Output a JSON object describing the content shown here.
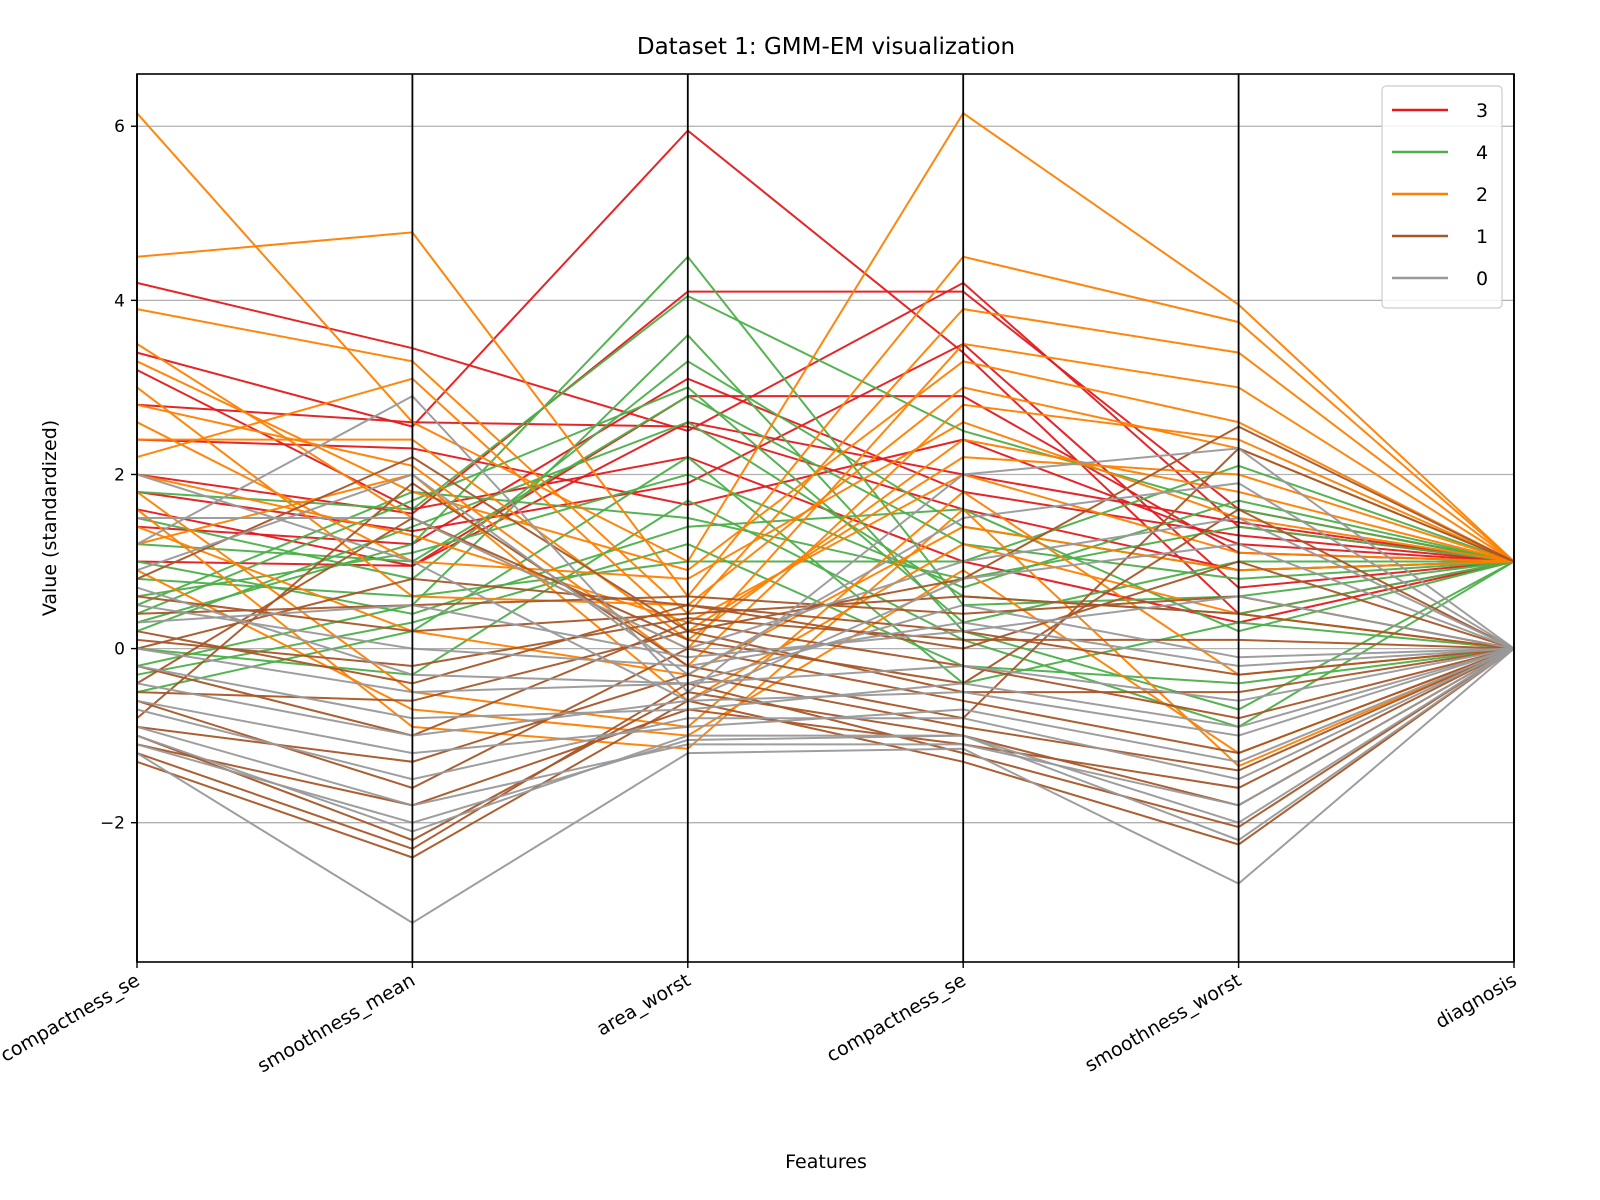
{
  "chart_data": {
    "type": "parallel-coordinates",
    "title": "Dataset 1: GMM-EM visualization",
    "xlabel": "Features",
    "ylabel": "Value (standardized)",
    "axes": [
      "compactness_se",
      "smoothness_mean",
      "area_worst",
      "compactness_se",
      "smoothness_worst",
      "diagnosis"
    ],
    "ylim": [
      -3.6,
      6.6
    ],
    "yticks": [
      -2,
      0,
      2,
      4,
      6
    ],
    "ytick_labels": [
      "−2",
      "0",
      "2",
      "4",
      "6"
    ],
    "grid": true,
    "legend_position": "top-right",
    "series": [
      {
        "name": "3",
        "color": "#e41a1c",
        "lines": [
          [
            4.2,
            3.45,
            2.5,
            4.2,
            1.4,
            1
          ],
          [
            3.4,
            2.55,
            5.95,
            3.4,
            0.4,
            1
          ],
          [
            2.4,
            2.3,
            1.65,
            2.4,
            1.2,
            1
          ],
          [
            2.0,
            1.55,
            4.1,
            4.1,
            1.6,
            1
          ],
          [
            1.6,
            0.95,
            2.9,
            2.9,
            1.1,
            1
          ],
          [
            1.0,
            0.95,
            2.6,
            2.0,
            1.45,
            1
          ],
          [
            3.2,
            1.6,
            2.2,
            1.0,
            0.3,
            1
          ],
          [
            1.8,
            1.35,
            1.9,
            3.5,
            0.7,
            1
          ],
          [
            2.8,
            2.6,
            2.55,
            1.6,
            0.9,
            1
          ],
          [
            1.4,
            1.2,
            3.1,
            1.8,
            1.3,
            1
          ]
        ]
      },
      {
        "name": "4",
        "color": "#4daf4a",
        "lines": [
          [
            0.3,
            1.2,
            4.5,
            0.5,
            0.6,
            1
          ],
          [
            -0.2,
            0.5,
            3.6,
            0.2,
            -0.7,
            1
          ],
          [
            1.2,
            1.0,
            2.9,
            1.2,
            0.8,
            1
          ],
          [
            0.5,
            1.8,
            1.5,
            0.8,
            1.4,
            1
          ],
          [
            -0.5,
            0.2,
            2.2,
            -0.4,
            0.3,
            0
          ],
          [
            0.8,
            0.6,
            1.0,
            1.0,
            2.1,
            1
          ],
          [
            1.8,
            1.6,
            4.05,
            2.5,
            1.6,
            1
          ],
          [
            0.0,
            -0.3,
            1.7,
            0.1,
            -0.9,
            1
          ],
          [
            0.2,
            1.4,
            2.6,
            0.6,
            0.4,
            1
          ],
          [
            1.5,
            0.8,
            3.3,
            1.4,
            0.9,
            1
          ],
          [
            -0.3,
            0.3,
            1.2,
            -0.2,
            -0.4,
            0
          ],
          [
            0.6,
            1.1,
            2.0,
            0.7,
            1.7,
            1
          ],
          [
            1.0,
            0.4,
            1.4,
            1.6,
            0.2,
            1
          ],
          [
            0.4,
            1.7,
            3.0,
            0.3,
            1.0,
            1
          ]
        ]
      },
      {
        "name": "2",
        "color": "#ff7f00",
        "lines": [
          [
            6.15,
            2.6,
            1.0,
            6.15,
            3.95,
            1
          ],
          [
            4.5,
            4.78,
            0.6,
            4.5,
            3.75,
            1
          ],
          [
            3.9,
            3.3,
            0.4,
            3.9,
            3.4,
            1
          ],
          [
            3.5,
            1.5,
            0.0,
            3.5,
            3.0,
            1
          ],
          [
            2.8,
            2.1,
            -0.2,
            2.8,
            2.4,
            1
          ],
          [
            2.2,
            3.1,
            0.2,
            2.2,
            2.0,
            1
          ],
          [
            1.6,
            -0.9,
            -1.15,
            1.6,
            -1.35,
            0
          ],
          [
            2.6,
            1.0,
            0.8,
            2.6,
            1.5,
            1
          ],
          [
            1.2,
            2.0,
            -0.6,
            1.2,
            0.4,
            0
          ],
          [
            3.0,
            0.6,
            0.5,
            3.0,
            2.3,
            1
          ],
          [
            1.8,
            -0.5,
            -0.9,
            1.8,
            -0.3,
            0
          ],
          [
            2.4,
            2.4,
            0.1,
            2.4,
            1.8,
            1
          ],
          [
            1.4,
            0.2,
            -0.3,
            1.4,
            0.9,
            1
          ],
          [
            3.3,
            1.8,
            0.9,
            3.3,
            2.6,
            1
          ],
          [
            0.9,
            -0.7,
            -1.0,
            0.9,
            -1.2,
            0
          ],
          [
            2.0,
            1.3,
            0.3,
            2.0,
            1.1,
            1
          ]
        ]
      },
      {
        "name": "1",
        "color": "#a65628",
        "lines": [
          [
            -1.3,
            -2.4,
            -0.6,
            -1.3,
            -2.25,
            0
          ],
          [
            -1.2,
            -2.3,
            -0.4,
            -1.2,
            -2.05,
            0
          ],
          [
            -1.0,
            -2.2,
            -0.5,
            -1.0,
            -1.8,
            0
          ],
          [
            -0.6,
            -1.6,
            0.0,
            -0.6,
            -1.2,
            0
          ],
          [
            -0.2,
            -1.0,
            0.3,
            -0.2,
            -0.8,
            0
          ],
          [
            0.2,
            -0.4,
            0.5,
            0.2,
            -0.3,
            0
          ],
          [
            0.6,
            0.2,
            0.4,
            0.6,
            0.4,
            0
          ],
          [
            0.8,
            2.2,
            0.2,
            0.8,
            2.55,
            1
          ],
          [
            -0.8,
            1.9,
            -0.2,
            -0.8,
            2.3,
            1
          ],
          [
            -0.4,
            1.5,
            0.1,
            -0.4,
            1.6,
            0
          ],
          [
            0.0,
            0.8,
            0.5,
            0.0,
            1.0,
            0
          ],
          [
            -1.1,
            -1.8,
            -0.7,
            -1.1,
            -1.6,
            0
          ],
          [
            -0.5,
            -0.6,
            0.2,
            -0.5,
            -0.5,
            0
          ],
          [
            0.4,
            0.5,
            0.6,
            0.4,
            0.6,
            0
          ],
          [
            -0.9,
            -1.3,
            -0.3,
            -0.9,
            -1.4,
            0
          ],
          [
            0.1,
            -0.2,
            0.35,
            0.1,
            0.1,
            0
          ]
        ]
      },
      {
        "name": "0",
        "color": "#999999",
        "lines": [
          [
            -1.2,
            -3.15,
            -1.2,
            -1.15,
            -2.7,
            0
          ],
          [
            -1.0,
            -2.1,
            -1.0,
            -1.0,
            -2.0,
            0
          ],
          [
            -0.7,
            -1.5,
            -0.8,
            -0.8,
            -1.5,
            0
          ],
          [
            -0.4,
            -1.0,
            -0.6,
            -0.5,
            -1.0,
            0
          ],
          [
            0.0,
            -0.5,
            -0.4,
            -0.2,
            -0.6,
            0
          ],
          [
            0.5,
            0.0,
            -0.2,
            0.3,
            -0.2,
            0
          ],
          [
            1.2,
            2.9,
            -0.5,
            2.0,
            2.3,
            0
          ],
          [
            0.9,
            2.0,
            -0.3,
            1.5,
            1.9,
            0
          ],
          [
            1.5,
            1.5,
            0.0,
            1.0,
            1.5,
            0
          ],
          [
            -0.9,
            -1.8,
            -1.1,
            -1.1,
            -1.8,
            0
          ],
          [
            -0.2,
            -0.8,
            -0.7,
            -0.4,
            -0.9,
            0
          ],
          [
            0.3,
            0.5,
            -0.1,
            0.2,
            0.6,
            0
          ],
          [
            2.0,
            1.0,
            -0.6,
            0.8,
            1.2,
            0
          ],
          [
            -0.6,
            -1.2,
            -0.9,
            -0.7,
            -1.3,
            0
          ],
          [
            0.7,
            -0.3,
            -0.4,
            0.5,
            -0.1,
            0
          ],
          [
            -1.1,
            -2.0,
            -1.05,
            -1.0,
            -2.2,
            0
          ]
        ]
      }
    ]
  }
}
